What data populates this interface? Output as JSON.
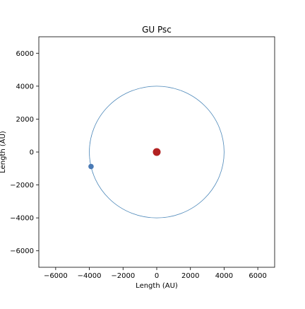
{
  "chart_data": {
    "type": "scatter",
    "title": "GU Psc",
    "xlabel": "Length (AU)",
    "ylabel": "Length (AU)",
    "xlim": [
      -7000,
      7000
    ],
    "ylim": [
      -7000,
      7000
    ],
    "xticks": [
      -6000,
      -4000,
      -2000,
      0,
      2000,
      4000,
      6000
    ],
    "yticks": [
      -6000,
      -4000,
      -2000,
      0,
      2000,
      4000,
      6000
    ],
    "xtick_labels": [
      "−6000",
      "−4000",
      "−2000",
      "0",
      "2000",
      "4000",
      "6000"
    ],
    "ytick_labels": [
      "−6000",
      "−4000",
      "−2000",
      "0",
      "2000",
      "4000",
      "6000"
    ],
    "grid": false,
    "legend": "none",
    "orbit": {
      "center": [
        0,
        0
      ],
      "radius": 4000,
      "color": "#4a86b8"
    },
    "host_star": {
      "x": 0,
      "y": 0,
      "color": "#b22222"
    },
    "companion": {
      "x": -3900,
      "y": -880,
      "color": "#4a7ab5"
    }
  }
}
